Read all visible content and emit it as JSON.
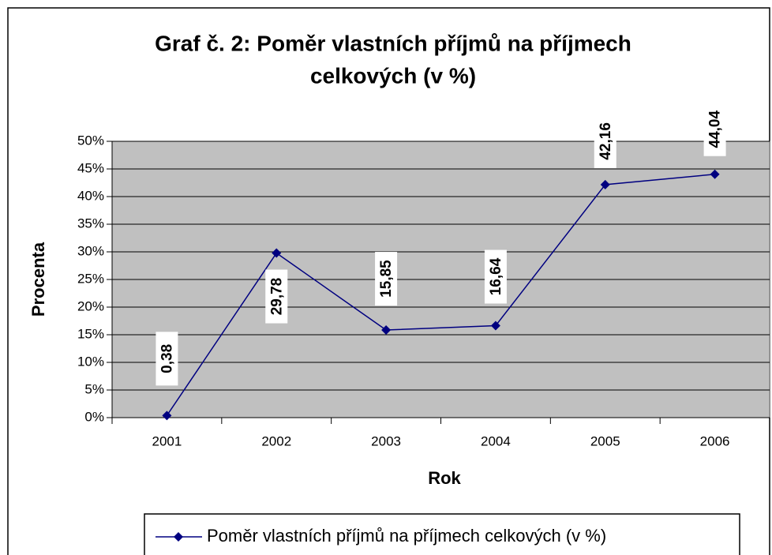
{
  "chart_data": {
    "type": "line",
    "title": [
      "Graf č. 2: Poměr vlastních příjmů na příjmech",
      "celkových (v %)"
    ],
    "x_label": "Rok",
    "y_label": "Procenta",
    "categories": [
      "2001",
      "2002",
      "2003",
      "2004",
      "2005",
      "2006"
    ],
    "series": [
      {
        "name": "Poměr vlastních příjmů na příjmech celkových (v %)",
        "color": "#000080",
        "values": [
          0.38,
          29.78,
          15.85,
          16.64,
          42.16,
          44.04
        ],
        "value_labels": [
          "0,38",
          "29,78",
          "15,85",
          "16,64",
          "42,16",
          "44,04"
        ]
      }
    ],
    "ylim": [
      0,
      50
    ],
    "yticks": [
      {
        "value": 0,
        "label": "0%"
      },
      {
        "value": 5,
        "label": "5%"
      },
      {
        "value": 10,
        "label": "10%"
      },
      {
        "value": 15,
        "label": "15%"
      },
      {
        "value": 20,
        "label": "20%"
      },
      {
        "value": 25,
        "label": "25%"
      },
      {
        "value": 30,
        "label": "30%"
      },
      {
        "value": 35,
        "label": "35%"
      },
      {
        "value": 40,
        "label": "40%"
      },
      {
        "value": 45,
        "label": "45%"
      },
      {
        "value": 50,
        "label": "50%"
      }
    ],
    "grid": true,
    "plot_background": "#c0c0c0",
    "legend": "bottom"
  }
}
